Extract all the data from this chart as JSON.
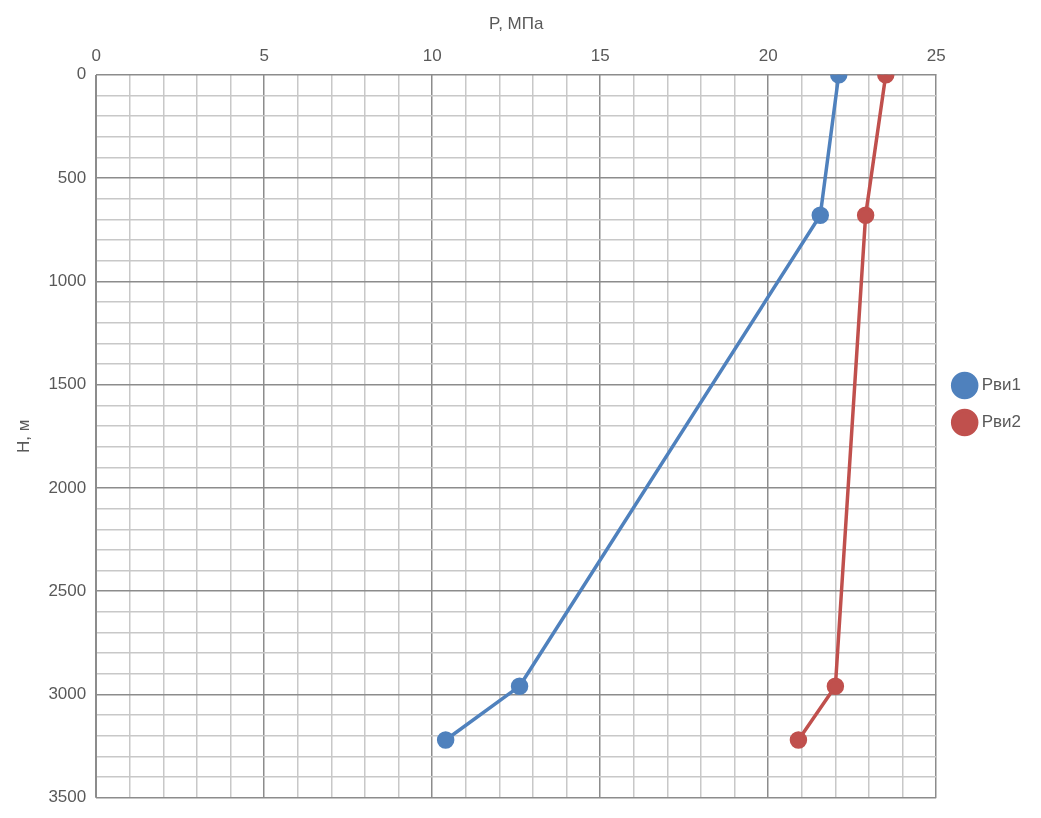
{
  "chart_data": {
    "type": "line",
    "xlabel": "P, МПа",
    "ylabel": "H, м",
    "xlim": [
      0,
      25
    ],
    "xticks": [
      0,
      {
        "value": 1,
        "label": null
      },
      {
        "value": 2,
        "label": null
      },
      {
        "value": 3,
        "label": null
      },
      {
        "value": 4,
        "label": null
      },
      5,
      {
        "value": 6,
        "label": null
      },
      {
        "value": 7,
        "label": null
      },
      {
        "value": 8,
        "label": null
      },
      {
        "value": 9,
        "label": null
      },
      10,
      {
        "value": 11,
        "label": null
      },
      {
        "value": 12,
        "label": null
      },
      {
        "value": 13,
        "label": null
      },
      {
        "value": 14,
        "label": null
      },
      15,
      {
        "value": 16,
        "label": null
      },
      {
        "value": 17,
        "label": null
      },
      {
        "value": 18,
        "label": null
      },
      {
        "value": 19,
        "label": null
      },
      20,
      {
        "value": 21,
        "label": null
      },
      {
        "value": 22,
        "label": null
      },
      {
        "value": 23,
        "label": null
      },
      {
        "value": 24,
        "label": null
      },
      25
    ],
    "ylim": [
      3500,
      0
    ],
    "yticks": [
      0,
      {
        "value": 100,
        "label": null
      },
      {
        "value": 200,
        "label": null
      },
      {
        "value": 300,
        "label": null
      },
      {
        "value": 400,
        "label": null
      },
      500,
      {
        "value": 600,
        "label": null
      },
      {
        "value": 700,
        "label": null
      },
      {
        "value": 800,
        "label": null
      },
      {
        "value": 900,
        "label": null
      },
      1000,
      {
        "value": 1100,
        "label": null
      },
      {
        "value": 1200,
        "label": null
      },
      {
        "value": 1300,
        "label": null
      },
      {
        "value": 1400,
        "label": null
      },
      1500,
      {
        "value": 1600,
        "label": null
      },
      {
        "value": 1700,
        "label": null
      },
      {
        "value": 1800,
        "label": null
      },
      {
        "value": 1900,
        "label": null
      },
      2000,
      {
        "value": 2100,
        "label": null
      },
      {
        "value": 2200,
        "label": null
      },
      {
        "value": 2300,
        "label": null
      },
      {
        "value": 2400,
        "label": null
      },
      2500,
      {
        "value": 2600,
        "label": null
      },
      {
        "value": 2700,
        "label": null
      },
      {
        "value": 2800,
        "label": null
      },
      {
        "value": 2900,
        "label": null
      },
      3000,
      {
        "value": 3100,
        "label": null
      },
      {
        "value": 3200,
        "label": null
      },
      {
        "value": 3300,
        "label": null
      },
      {
        "value": 3400,
        "label": null
      },
      3500
    ],
    "grid": true,
    "legend": "right",
    "marker": "circle",
    "line_style": "solid",
    "series": [
      {
        "name": "Рви1",
        "color": "#4f81bd",
        "x": [
          22.1,
          21.55,
          12.6,
          10.4
        ],
        "values": [
          0,
          680,
          2960,
          3220
        ]
      },
      {
        "name": "Рви2",
        "color": "#c0504d",
        "x": [
          23.5,
          22.9,
          22.0,
          20.9
        ],
        "values": [
          0,
          680,
          2960,
          3220
        ]
      }
    ]
  }
}
